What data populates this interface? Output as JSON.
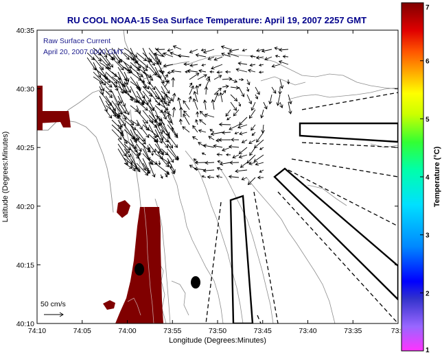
{
  "title": "RU COOL  NOAA-15  Sea Surface Temperature:  April 19, 2007 2257 GMT",
  "annotation": {
    "line1": "Raw Surface Current",
    "line2": "April 20, 2007 0000 GMT"
  },
  "axes": {
    "xlabel": "Longitude (Degrees:Minutes)",
    "ylabel": "Latitude (Degrees:Minutes)",
    "xticks": [
      "74:10",
      "74:05",
      "74:00",
      "73:55",
      "73:50",
      "73:45",
      "73:40",
      "73:35",
      "73:3"
    ],
    "yticks": [
      "40:35",
      "40:30",
      "40:25",
      "40:20",
      "40:15",
      "40:10"
    ]
  },
  "scale_label": "50 cm/s",
  "colorbar": {
    "label": "Temperature (°C)",
    "ticks": [
      "7",
      "6",
      "5",
      "4",
      "3",
      "2",
      "1"
    ],
    "min": 1,
    "max": 7
  },
  "colors": {
    "title": "#00008b",
    "land": "#800000",
    "contour": "#8c8c8c",
    "arrow": "#000000"
  }
}
